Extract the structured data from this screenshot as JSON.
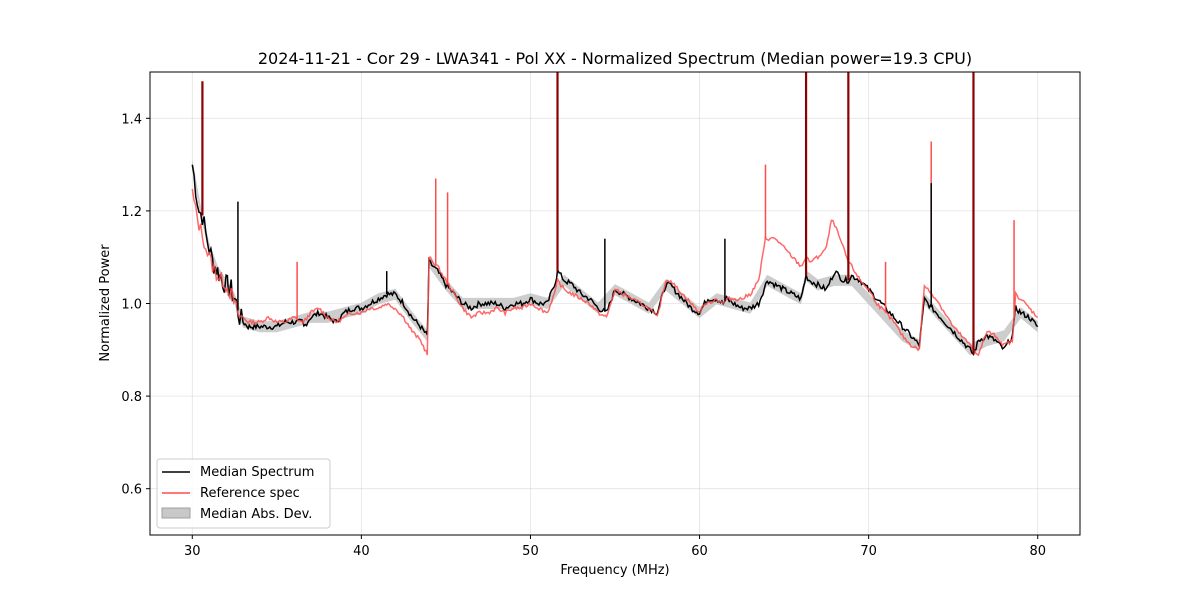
{
  "chart_data": {
    "type": "line",
    "title": "2024-11-21 - Cor 29 - LWA341 - Pol XX - Normalized Spectrum (Median power=19.3 CPU)",
    "xlabel": "Frequency (MHz)",
    "ylabel": "Normalized Power",
    "xlim": [
      27.5,
      82.5
    ],
    "ylim": [
      0.5,
      1.5
    ],
    "xticks": [
      30,
      40,
      50,
      60,
      70,
      80
    ],
    "yticks": [
      0.6,
      0.8,
      1.0,
      1.2,
      1.4
    ],
    "grid": true,
    "legend_position": "lower-left",
    "legend": [
      "Median Spectrum",
      "Reference spec",
      "Median Abs. Dev."
    ],
    "colors": {
      "median": "#000000",
      "reference": "#ff4d4d",
      "overlap": "#8b0000",
      "band": "#c8c8c8"
    },
    "series": [
      {
        "name": "Median Spectrum",
        "x": [
          30.0,
          30.2,
          30.4,
          30.6,
          30.8,
          31.0,
          31.2,
          31.5,
          31.8,
          32.0,
          32.3,
          32.6,
          32.8,
          33.0,
          33.3,
          33.6,
          34.0,
          34.5,
          35.0,
          35.5,
          36.0,
          36.5,
          36.6,
          37.0,
          37.5,
          38.0,
          38.5,
          39.0,
          39.5,
          40.0,
          40.5,
          41.0,
          41.5,
          42.0,
          42.5,
          43.0,
          43.5,
          43.9,
          44.0,
          44.5,
          45.0,
          45.5,
          46.0,
          46.5,
          47.0,
          47.5,
          48.0,
          48.5,
          49.0,
          49.5,
          50.0,
          50.5,
          51.0,
          51.5,
          51.6,
          51.8,
          52.0,
          52.5,
          53.0,
          53.5,
          54.0,
          54.5,
          55.0,
          55.5,
          56.0,
          56.5,
          57.0,
          57.5,
          58.0,
          58.3,
          58.5,
          59.0,
          59.5,
          60.0,
          60.3,
          60.5,
          61.0,
          61.4,
          61.6,
          62.0,
          62.5,
          63.0,
          63.5,
          64.0,
          64.5,
          65.0,
          65.5,
          66.0,
          66.3,
          66.5,
          67.0,
          67.5,
          68.0,
          68.5,
          68.8,
          69.0,
          69.5,
          70.0,
          70.5,
          71.0,
          71.5,
          72.0,
          72.5,
          73.0,
          73.3,
          73.5,
          74.0,
          74.5,
          75.0,
          75.5,
          76.0,
          76.2,
          76.5,
          77.0,
          77.5,
          78.0,
          78.5,
          78.7,
          79.0,
          79.5,
          80.0
        ],
        "y": [
          1.3,
          1.25,
          1.2,
          1.19,
          1.15,
          1.12,
          1.09,
          1.07,
          1.05,
          1.04,
          1.03,
          1.0,
          0.97,
          0.96,
          0.95,
          0.95,
          0.95,
          0.95,
          0.95,
          0.96,
          0.96,
          0.96,
          0.95,
          0.97,
          0.98,
          0.97,
          0.96,
          0.98,
          0.99,
          0.99,
          1.0,
          1.01,
          1.02,
          1.02,
          1.0,
          0.97,
          0.95,
          0.93,
          1.09,
          1.07,
          1.04,
          1.02,
          1.0,
          0.99,
          1.0,
          1.0,
          1.0,
          0.99,
          1.0,
          1.0,
          1.01,
          1.0,
          1.0,
          1.05,
          1.07,
          1.06,
          1.05,
          1.04,
          1.02,
          1.01,
          0.99,
          0.98,
          1.03,
          1.02,
          1.01,
          1.0,
          0.99,
          0.98,
          1.04,
          1.04,
          1.03,
          1.01,
          0.99,
          0.98,
          1.0,
          1.01,
          1.01,
          1.0,
          1.01,
          1.0,
          0.99,
          0.99,
          1.0,
          1.05,
          1.04,
          1.03,
          1.02,
          1.01,
          1.06,
          1.05,
          1.04,
          1.03,
          1.07,
          1.05,
          1.05,
          1.06,
          1.05,
          1.03,
          1.01,
          0.99,
          0.97,
          0.95,
          0.93,
          0.91,
          1.01,
          1.0,
          0.98,
          0.96,
          0.94,
          0.92,
          0.9,
          0.89,
          0.92,
          0.93,
          0.92,
          0.9,
          0.93,
          0.99,
          0.98,
          0.97,
          0.95
        ]
      },
      {
        "name": "Reference spec",
        "x": [
          30.0,
          30.2,
          30.4,
          30.6,
          30.8,
          31.0,
          31.2,
          31.5,
          31.8,
          32.0,
          32.3,
          32.6,
          32.8,
          33.0,
          33.3,
          33.6,
          34.0,
          34.5,
          35.0,
          35.5,
          36.0,
          36.5,
          36.6,
          37.0,
          37.5,
          38.0,
          38.5,
          39.0,
          39.5,
          40.0,
          40.5,
          41.0,
          41.5,
          42.0,
          42.5,
          43.0,
          43.5,
          43.9,
          44.0,
          44.5,
          45.0,
          45.5,
          46.0,
          46.5,
          47.0,
          47.5,
          48.0,
          48.5,
          49.0,
          49.5,
          50.0,
          50.5,
          51.0,
          51.5,
          51.6,
          51.8,
          52.0,
          52.5,
          53.0,
          53.5,
          54.0,
          54.5,
          55.0,
          55.5,
          56.0,
          56.5,
          57.0,
          57.5,
          58.0,
          58.3,
          58.5,
          59.0,
          59.5,
          60.0,
          60.3,
          60.5,
          61.0,
          61.4,
          61.6,
          62.0,
          62.5,
          63.0,
          63.5,
          63.9,
          64.0,
          64.5,
          65.0,
          65.5,
          66.0,
          66.3,
          66.5,
          67.0,
          67.5,
          67.8,
          68.0,
          68.5,
          68.8,
          69.0,
          69.5,
          70.0,
          70.5,
          71.0,
          71.5,
          72.0,
          72.5,
          73.0,
          73.3,
          73.5,
          74.0,
          74.5,
          75.0,
          75.5,
          76.0,
          76.2,
          76.5,
          77.0,
          77.5,
          78.0,
          78.5,
          78.7,
          79.0,
          79.5,
          80.0
        ],
        "y": [
          1.24,
          1.2,
          1.17,
          1.15,
          1.12,
          1.1,
          1.08,
          1.06,
          1.05,
          1.04,
          1.02,
          0.99,
          0.97,
          0.97,
          0.96,
          0.96,
          0.96,
          0.97,
          0.96,
          0.96,
          0.97,
          0.96,
          0.96,
          0.98,
          0.99,
          0.97,
          0.96,
          0.97,
          0.98,
          0.98,
          0.99,
          0.99,
          1.0,
          0.99,
          0.97,
          0.94,
          0.92,
          0.89,
          1.1,
          1.08,
          1.05,
          1.02,
          0.99,
          0.97,
          0.98,
          0.98,
          0.99,
          0.98,
          0.99,
          0.99,
          1.0,
          0.99,
          0.98,
          1.03,
          1.05,
          1.04,
          1.03,
          1.02,
          1.01,
          1.0,
          0.98,
          0.97,
          1.03,
          1.02,
          1.01,
          1.0,
          0.99,
          0.97,
          1.05,
          1.05,
          1.04,
          1.02,
          1.0,
          0.98,
          1.0,
          1.0,
          1.01,
          1.0,
          1.01,
          1.01,
          1.01,
          1.02,
          1.05,
          1.14,
          1.14,
          1.14,
          1.12,
          1.1,
          1.08,
          1.1,
          1.09,
          1.1,
          1.12,
          1.18,
          1.17,
          1.12,
          1.09,
          1.08,
          1.05,
          1.03,
          1.0,
          0.98,
          0.96,
          0.93,
          0.91,
          0.9,
          1.04,
          1.03,
          1.01,
          0.98,
          0.95,
          0.93,
          0.91,
          0.9,
          0.89,
          0.94,
          0.93,
          0.91,
          0.92,
          1.02,
          1.01,
          0.99,
          0.97
        ]
      }
    ],
    "band": {
      "name": "Median Abs. Dev.",
      "x": [
        30.0,
        30.5,
        31.0,
        31.5,
        32.0,
        32.5,
        33.0,
        34.0,
        35.0,
        36.0,
        37.0,
        38.0,
        39.0,
        40.0,
        41.0,
        42.0,
        43.0,
        43.9,
        44.0,
        45.0,
        46.0,
        47.0,
        48.0,
        49.0,
        50.0,
        51.0,
        52.0,
        53.0,
        54.0,
        55.0,
        56.0,
        57.0,
        58.0,
        59.0,
        60.0,
        61.0,
        62.0,
        63.0,
        64.0,
        65.0,
        66.0,
        66.3,
        67.0,
        68.0,
        69.0,
        70.0,
        71.0,
        72.0,
        73.0,
        73.3,
        74.0,
        75.0,
        76.0,
        77.0,
        78.0,
        79.0,
        80.0
      ],
      "y": [
        1.3,
        1.2,
        1.12,
        1.07,
        1.04,
        1.01,
        0.96,
        0.95,
        0.95,
        0.96,
        0.97,
        0.97,
        0.98,
        0.99,
        1.01,
        1.02,
        0.97,
        0.93,
        1.09,
        1.04,
        1.0,
        1.0,
        1.0,
        1.0,
        1.01,
        1.0,
        1.05,
        1.02,
        0.99,
        1.03,
        1.01,
        0.99,
        1.04,
        1.01,
        0.98,
        1.01,
        1.0,
        0.99,
        1.05,
        1.03,
        1.01,
        1.06,
        1.04,
        1.05,
        1.05,
        1.01,
        0.97,
        0.93,
        0.91,
        1.01,
        0.98,
        0.94,
        0.9,
        0.92,
        0.93,
        0.98,
        0.95
      ],
      "half_width": 0.012
    },
    "spikes": [
      {
        "x": 51.6,
        "top": 1.5,
        "series": "both"
      },
      {
        "x": 66.3,
        "top": 1.5,
        "series": "both"
      },
      {
        "x": 68.8,
        "top": 1.5,
        "series": "both"
      },
      {
        "x": 76.2,
        "top": 1.5,
        "series": "both"
      },
      {
        "x": 30.6,
        "top": 1.48,
        "series": "both"
      },
      {
        "x": 73.7,
        "top": 1.35,
        "series": "reference"
      },
      {
        "x": 73.7,
        "top": 1.26,
        "series": "median"
      },
      {
        "x": 78.6,
        "top": 1.18,
        "series": "reference"
      },
      {
        "x": 44.4,
        "top": 1.27,
        "series": "reference"
      },
      {
        "x": 45.1,
        "top": 1.24,
        "series": "reference"
      },
      {
        "x": 63.9,
        "top": 1.3,
        "series": "reference"
      },
      {
        "x": 32.7,
        "top": 1.22,
        "series": "median"
      },
      {
        "x": 36.2,
        "top": 1.09,
        "series": "reference"
      },
      {
        "x": 41.5,
        "top": 1.07,
        "series": "median"
      },
      {
        "x": 54.4,
        "top": 1.14,
        "series": "median"
      },
      {
        "x": 61.5,
        "top": 1.14,
        "series": "median"
      },
      {
        "x": 71.0,
        "top": 1.09,
        "series": "reference"
      }
    ]
  }
}
